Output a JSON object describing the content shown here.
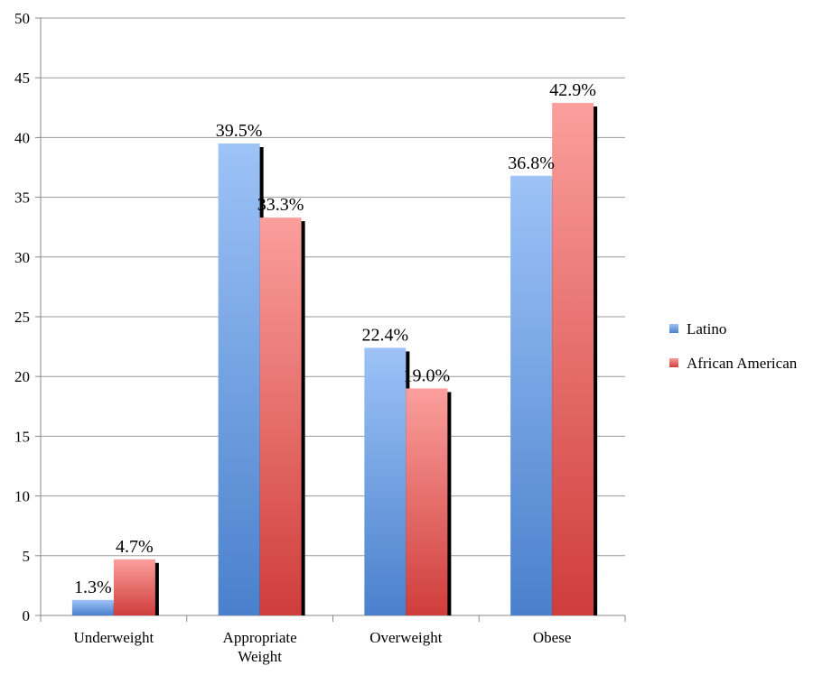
{
  "chart_data": {
    "type": "bar",
    "categories": [
      [
        "Underweight"
      ],
      [
        "Appropriate",
        "Weight"
      ],
      [
        "Overweight"
      ],
      [
        "Obese"
      ]
    ],
    "series": [
      {
        "name": "Latino",
        "values": [
          1.3,
          39.5,
          22.4,
          36.8
        ],
        "labels": [
          "1.3%",
          "39.5%",
          "22.4%",
          "36.8%"
        ],
        "color_top": "#9dc3f7",
        "color_bottom": "#4a80cc"
      },
      {
        "name": "African American",
        "values": [
          4.7,
          33.3,
          19.0,
          42.9
        ],
        "labels": [
          "4.7%",
          "33.3%",
          "19.0%",
          "42.9%"
        ],
        "color_top": "#fb9f9c",
        "color_bottom": "#cf3d3b"
      }
    ],
    "ylim": [
      0,
      50
    ],
    "yticks": [
      0,
      5,
      10,
      15,
      20,
      25,
      30,
      35,
      40,
      45,
      50
    ],
    "grid": true,
    "legend_position": "right",
    "title": "",
    "xlabel": "",
    "ylabel": ""
  }
}
